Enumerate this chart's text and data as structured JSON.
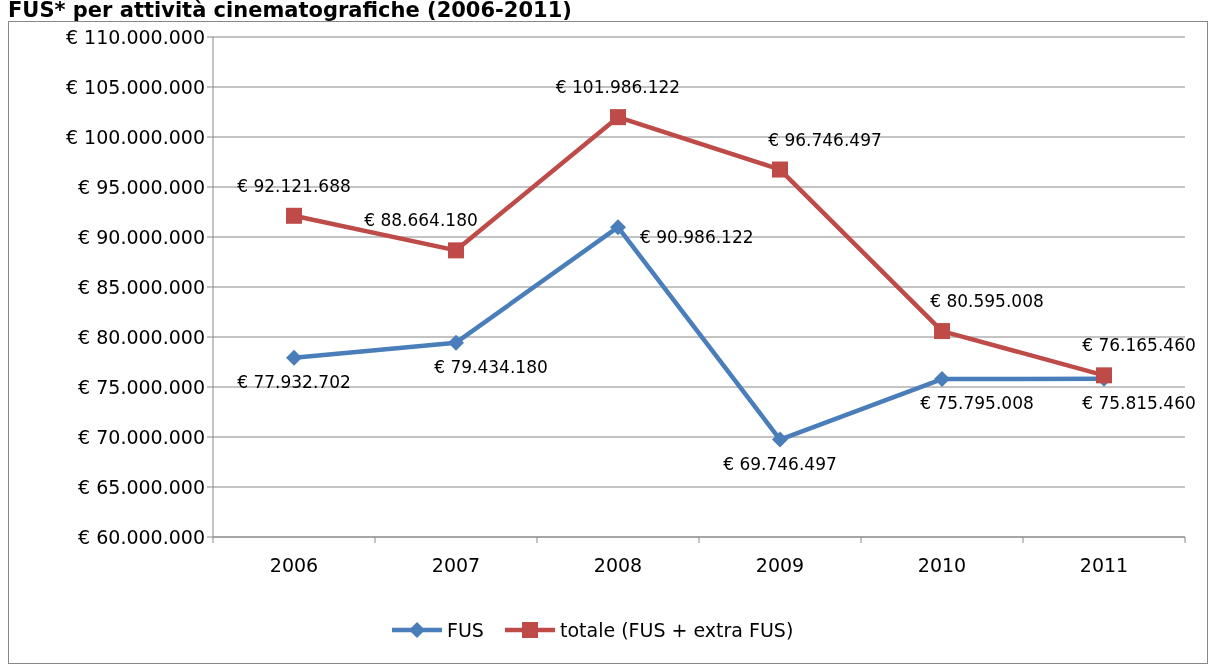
{
  "chart_data": {
    "type": "line",
    "title": "FUS* per attività cinematografiche (2006-2011)",
    "categories": [
      "2006",
      "2007",
      "2008",
      "2009",
      "2010",
      "2011"
    ],
    "series": [
      {
        "name": "FUS",
        "color": "#4a7ebb",
        "marker": "diamond",
        "values": [
          77932702,
          79434180,
          90986122,
          69746497,
          75795008,
          75815460
        ],
        "value_labels": [
          "€ 77.932.702",
          "€ 79.434.180",
          "€ 90.986.122",
          "€ 69.746.497",
          "€ 75.795.008",
          "€ 75.815.460"
        ]
      },
      {
        "name": "totale (FUS + extra FUS)",
        "color": "#be4b48",
        "marker": "square",
        "values": [
          92121688,
          88664180,
          101986122,
          96746497,
          80595008,
          76165460
        ],
        "value_labels": [
          "€ 92.121.688",
          "€ 88.664.180",
          "€ 101.986.122",
          "€ 96.746.497",
          "€ 80.595.008",
          "€ 76.165.460"
        ]
      }
    ],
    "ylim": [
      60000000,
      110000000
    ],
    "yticks": [
      {
        "value": 60000000,
        "label": "€ 60.000.000"
      },
      {
        "value": 65000000,
        "label": "€ 65.000.000"
      },
      {
        "value": 70000000,
        "label": "€ 70.000.000"
      },
      {
        "value": 75000000,
        "label": "€ 75.000.000"
      },
      {
        "value": 80000000,
        "label": "€ 80.000.000"
      },
      {
        "value": 85000000,
        "label": "€ 85.000.000"
      },
      {
        "value": 90000000,
        "label": "€ 90.000.000"
      },
      {
        "value": 95000000,
        "label": "€ 95.000.000"
      },
      {
        "value": 100000000,
        "label": "€ 100.000.000"
      },
      {
        "value": 105000000,
        "label": "€ 105.000.000"
      },
      {
        "value": 110000000,
        "label": "€ 110.000.000"
      }
    ],
    "grid": "y",
    "legend": "bottom",
    "line_style": "solid"
  }
}
